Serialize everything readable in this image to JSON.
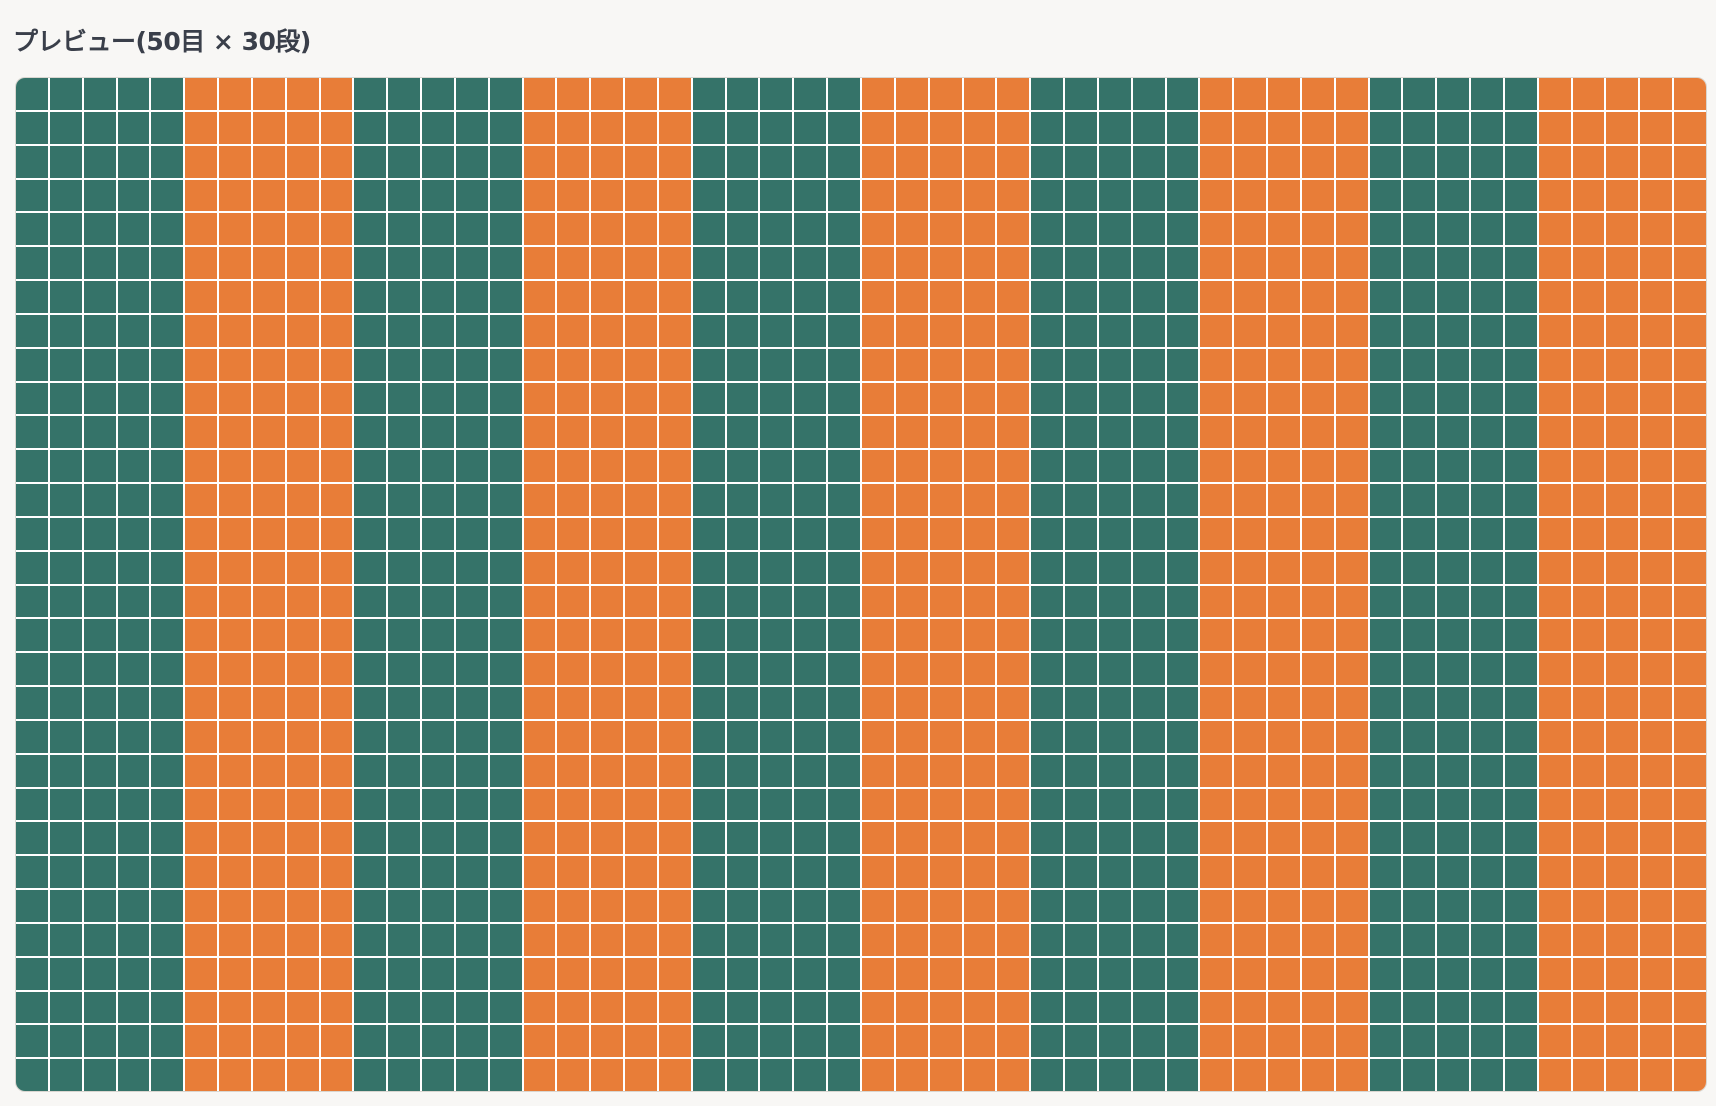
{
  "header": {
    "title": "プレビュー(50目 × 30段)"
  },
  "grid": {
    "rows": 30,
    "column_colors": [
      "#357369",
      "#357369",
      "#357369",
      "#357369",
      "#357369",
      "#e87d38",
      "#e87d38",
      "#e87d38",
      "#e87d38",
      "#e87d38",
      "#357369",
      "#357369",
      "#357369",
      "#357369",
      "#357369",
      "#e87d38",
      "#e87d38",
      "#e87d38",
      "#e87d38",
      "#e87d38",
      "#357369",
      "#357369",
      "#357369",
      "#357369",
      "#357369",
      "#e87d38",
      "#e87d38",
      "#e87d38",
      "#e87d38",
      "#e87d38",
      "#357369",
      "#357369",
      "#357369",
      "#357369",
      "#357369",
      "#e87d38",
      "#e87d38",
      "#e87d38",
      "#e87d38",
      "#e87d38",
      "#357369",
      "#357369",
      "#357369",
      "#357369",
      "#357369",
      "#e87d38",
      "#e87d38",
      "#e87d38",
      "#e87d38",
      "#e87d38"
    ]
  }
}
